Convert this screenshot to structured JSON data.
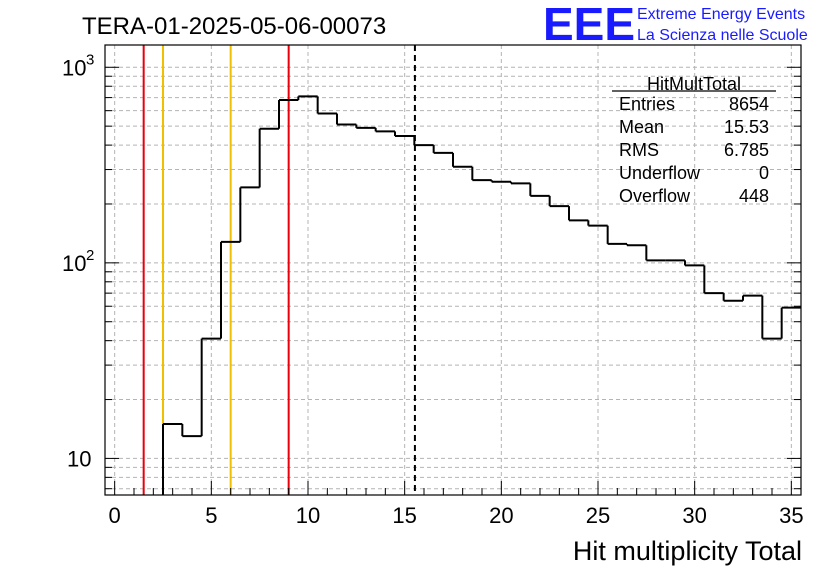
{
  "chart_data": {
    "type": "bar",
    "title": "TERA-01-2025-05-06-00073",
    "xlabel": "Hit multiplicity Total",
    "ylabel": "",
    "xlim": [
      -0.5,
      35.5
    ],
    "ylim": [
      6.5,
      1300
    ],
    "y_scale": "log",
    "grid": true,
    "x_ticks": [
      "0",
      "5",
      "10",
      "15",
      "20",
      "25",
      "30",
      "35"
    ],
    "y_ticks": [
      {
        "value": 10,
        "base": "10",
        "exp": ""
      },
      {
        "value": 100,
        "base": "10",
        "exp": "2"
      },
      {
        "value": 1000,
        "base": "10",
        "exp": "3"
      }
    ],
    "bin_width": 1,
    "bin_starts": [
      -0.5,
      0.5,
      1.5,
      2.5,
      3.5,
      4.5,
      5.5,
      6.5,
      7.5,
      8.5,
      9.5,
      10.5,
      11.5,
      12.5,
      13.5,
      14.5,
      15.5,
      16.5,
      17.5,
      18.5,
      19.5,
      20.5,
      21.5,
      22.5,
      23.5,
      24.5,
      25.5,
      26.5,
      27.5,
      28.5,
      29.5,
      30.5,
      31.5,
      32.5,
      33.5,
      34.5
    ],
    "values": [
      0,
      0,
      0,
      15,
      13,
      41,
      128,
      243,
      485,
      680,
      710,
      580,
      510,
      490,
      470,
      445,
      400,
      365,
      310,
      265,
      260,
      255,
      220,
      195,
      165,
      155,
      125,
      123,
      103,
      103,
      97,
      70,
      64,
      68,
      41,
      59
    ],
    "vertical_lines": [
      {
        "x": 1.5,
        "color": "#e8000b",
        "style": "solid"
      },
      {
        "x": 2.5,
        "color": "#f0c000",
        "style": "solid"
      },
      {
        "x": 6.0,
        "color": "#f0c000",
        "style": "solid"
      },
      {
        "x": 9.0,
        "color": "#e8000b",
        "style": "solid"
      },
      {
        "x": 15.53,
        "color": "#000000",
        "style": "dashed"
      }
    ],
    "stats_box": {
      "name": "HitMultTotal",
      "rows": [
        {
          "label": "Entries",
          "value": "8654"
        },
        {
          "label": "Mean",
          "value": "15.53"
        },
        {
          "label": "RMS",
          "value": "6.785"
        },
        {
          "label": "Underflow",
          "value": "0"
        },
        {
          "label": "Overflow",
          "value": "448"
        }
      ]
    }
  },
  "logo": {
    "letters": "EEE",
    "line1": "Extreme Energy Events",
    "line2": "La Scienza nelle Scuole",
    "color": "#1a1aff"
  }
}
